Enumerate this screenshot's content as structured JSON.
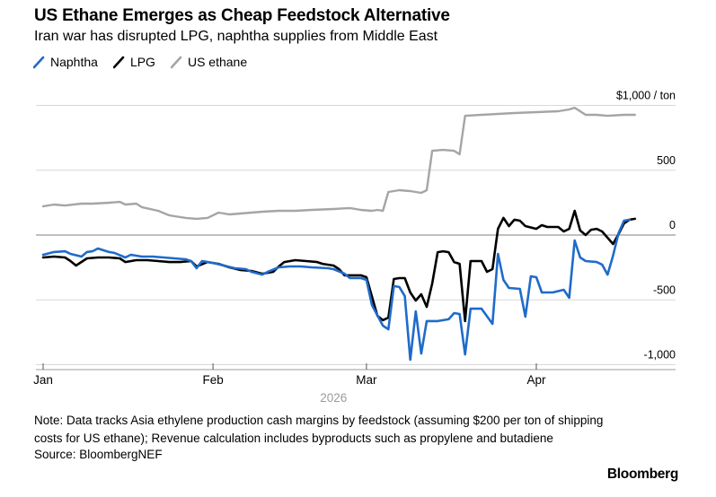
{
  "header": {
    "title": "US Ethane Emerges as Cheap Feedstock Alternative",
    "subtitle": "Iran war has disrupted LPG, naphtha supplies from Middle East"
  },
  "legend": [
    {
      "label": "Naphtha",
      "color": "#1f6bc9"
    },
    {
      "label": "LPG",
      "color": "#000000"
    },
    {
      "label": "US ethane",
      "color": "#a5a5a5"
    }
  ],
  "chart_data": {
    "type": "line",
    "title": "US Ethane Emerges as Cheap Feedstock Alternative",
    "subtitle": "Iran war has disrupted LPG, naphtha supplies from Middle East",
    "ylabel": "$ / ton",
    "x_unit": "days since Jan 1, 2026",
    "ylim": [
      -1100,
      1100
    ],
    "grid": true,
    "legend_position": "top-left",
    "y_gridlines": [
      {
        "value": 1000,
        "label": "$1,000 / ton"
      },
      {
        "value": 500,
        "label": "500"
      },
      {
        "value": 0,
        "label": "0"
      },
      {
        "value": -500,
        "label": "-500"
      },
      {
        "value": -1000,
        "label": "-1,000"
      }
    ],
    "x_ticks": [
      {
        "day": 0,
        "label": "Jan"
      },
      {
        "day": 31,
        "label": "Feb"
      },
      {
        "day": 59,
        "label": "Mar"
      },
      {
        "day": 90,
        "label": "Apr"
      }
    ],
    "year_label": {
      "day": 53,
      "label": "2026"
    },
    "colors": {
      "naphtha": "#1f6bc9",
      "lpg": "#000000",
      "us_ethane": "#a5a5a5",
      "gridline": "#d8d8d8",
      "zero_line": "#7f7f7f",
      "axis_line": "#b0b0b0",
      "year_text": "#9b9b9b"
    },
    "series": [
      {
        "name": "Naphtha",
        "color": "#1f6bc9",
        "points": [
          [
            0,
            -152
          ],
          [
            2,
            -131
          ],
          [
            4,
            -125
          ],
          [
            5,
            -145
          ],
          [
            7,
            -166
          ],
          [
            8,
            -131
          ],
          [
            9,
            -125
          ],
          [
            10,
            -104
          ],
          [
            12,
            -131
          ],
          [
            13,
            -138
          ],
          [
            15,
            -173
          ],
          [
            16,
            -152
          ],
          [
            18,
            -166
          ],
          [
            20,
            -166
          ],
          [
            22,
            -173
          ],
          [
            24,
            -180
          ],
          [
            26,
            -187
          ],
          [
            27,
            -201
          ],
          [
            28,
            -256
          ],
          [
            29,
            -201
          ],
          [
            31,
            -215
          ],
          [
            33,
            -235
          ],
          [
            35,
            -256
          ],
          [
            37,
            -263
          ],
          [
            38,
            -284
          ],
          [
            40,
            -305
          ],
          [
            41,
            -284
          ],
          [
            43,
            -249
          ],
          [
            45,
            -242
          ],
          [
            47,
            -242
          ],
          [
            49,
            -249
          ],
          [
            52,
            -256
          ],
          [
            53,
            -263
          ],
          [
            55,
            -298
          ],
          [
            56,
            -332
          ],
          [
            58,
            -332
          ],
          [
            59,
            -346
          ],
          [
            60,
            -540
          ],
          [
            62,
            -699
          ],
          [
            63,
            -727
          ],
          [
            64,
            -394
          ],
          [
            65,
            -401
          ],
          [
            66,
            -471
          ],
          [
            67,
            -962
          ],
          [
            68,
            -588
          ],
          [
            69,
            -914
          ],
          [
            70,
            -664
          ],
          [
            72,
            -664
          ],
          [
            74,
            -650
          ],
          [
            75,
            -602
          ],
          [
            76,
            -609
          ],
          [
            77,
            -921
          ],
          [
            78,
            -568
          ],
          [
            80,
            -568
          ],
          [
            82,
            -685
          ],
          [
            83,
            -145
          ],
          [
            84,
            -346
          ],
          [
            85,
            -408
          ],
          [
            87,
            -415
          ],
          [
            88,
            -630
          ],
          [
            89,
            -318
          ],
          [
            90,
            -325
          ],
          [
            91,
            -443
          ],
          [
            93,
            -443
          ],
          [
            95,
            -422
          ],
          [
            96,
            -484
          ],
          [
            97,
            -42
          ],
          [
            98,
            -173
          ],
          [
            99,
            -201
          ],
          [
            101,
            -208
          ],
          [
            102,
            -228
          ],
          [
            103,
            -305
          ],
          [
            104,
            -159
          ],
          [
            105,
            14
          ],
          [
            106,
            111
          ],
          [
            107,
            118
          ]
        ]
      },
      {
        "name": "LPG",
        "color": "#000000",
        "points": [
          [
            0,
            -173
          ],
          [
            2,
            -166
          ],
          [
            4,
            -173
          ],
          [
            5,
            -201
          ],
          [
            6,
            -235
          ],
          [
            8,
            -180
          ],
          [
            10,
            -173
          ],
          [
            12,
            -173
          ],
          [
            14,
            -180
          ],
          [
            15,
            -208
          ],
          [
            17,
            -194
          ],
          [
            19,
            -194
          ],
          [
            21,
            -201
          ],
          [
            23,
            -208
          ],
          [
            25,
            -208
          ],
          [
            27,
            -201
          ],
          [
            28,
            -242
          ],
          [
            30,
            -208
          ],
          [
            32,
            -222
          ],
          [
            34,
            -249
          ],
          [
            36,
            -270
          ],
          [
            38,
            -277
          ],
          [
            40,
            -298
          ],
          [
            42,
            -284
          ],
          [
            43,
            -242
          ],
          [
            44,
            -208
          ],
          [
            46,
            -194
          ],
          [
            48,
            -201
          ],
          [
            50,
            -208
          ],
          [
            51,
            -222
          ],
          [
            53,
            -235
          ],
          [
            54,
            -263
          ],
          [
            55,
            -311
          ],
          [
            57,
            -311
          ],
          [
            58,
            -311
          ],
          [
            59,
            -325
          ],
          [
            61,
            -623
          ],
          [
            62,
            -657
          ],
          [
            63,
            -637
          ],
          [
            64,
            -339
          ],
          [
            65,
            -332
          ],
          [
            66,
            -332
          ],
          [
            67,
            -443
          ],
          [
            68,
            -505
          ],
          [
            69,
            -457
          ],
          [
            70,
            -554
          ],
          [
            71,
            -374
          ],
          [
            72,
            -132
          ],
          [
            73,
            -125
          ],
          [
            74,
            -132
          ],
          [
            75,
            -208
          ],
          [
            76,
            -222
          ],
          [
            77,
            -664
          ],
          [
            78,
            -201
          ],
          [
            80,
            -201
          ],
          [
            81,
            -284
          ],
          [
            82,
            -263
          ],
          [
            83,
            48
          ],
          [
            84,
            132
          ],
          [
            85,
            69
          ],
          [
            86,
            118
          ],
          [
            87,
            111
          ],
          [
            88,
            69
          ],
          [
            90,
            48
          ],
          [
            91,
            76
          ],
          [
            92,
            62
          ],
          [
            94,
            62
          ],
          [
            95,
            28
          ],
          [
            96,
            48
          ],
          [
            97,
            187
          ],
          [
            98,
            35
          ],
          [
            99,
            0
          ],
          [
            100,
            41
          ],
          [
            101,
            48
          ],
          [
            102,
            28
          ],
          [
            104,
            -69
          ],
          [
            105,
            7
          ],
          [
            106,
            90
          ],
          [
            107,
            118
          ],
          [
            108,
            125
          ]
        ]
      },
      {
        "name": "US ethane",
        "color": "#a5a5a5",
        "points": [
          [
            0,
            222
          ],
          [
            2,
            235
          ],
          [
            4,
            228
          ],
          [
            7,
            242
          ],
          [
            9,
            242
          ],
          [
            12,
            249
          ],
          [
            14,
            256
          ],
          [
            15,
            235
          ],
          [
            17,
            242
          ],
          [
            18,
            215
          ],
          [
            21,
            187
          ],
          [
            23,
            152
          ],
          [
            26,
            132
          ],
          [
            28,
            125
          ],
          [
            30,
            132
          ],
          [
            32,
            173
          ],
          [
            34,
            159
          ],
          [
            36,
            166
          ],
          [
            40,
            180
          ],
          [
            43,
            187
          ],
          [
            46,
            187
          ],
          [
            49,
            194
          ],
          [
            53,
            201
          ],
          [
            56,
            208
          ],
          [
            58,
            194
          ],
          [
            60,
            187
          ],
          [
            61,
            194
          ],
          [
            62,
            187
          ],
          [
            63,
            332
          ],
          [
            65,
            346
          ],
          [
            67,
            339
          ],
          [
            69,
            325
          ],
          [
            70,
            346
          ],
          [
            71,
            650
          ],
          [
            73,
            657
          ],
          [
            75,
            650
          ],
          [
            76,
            623
          ],
          [
            77,
            920
          ],
          [
            80,
            927
          ],
          [
            83,
            934
          ],
          [
            86,
            941
          ],
          [
            90,
            948
          ],
          [
            94,
            955
          ],
          [
            96,
            969
          ],
          [
            97,
            982
          ],
          [
            98,
            955
          ],
          [
            99,
            927
          ],
          [
            101,
            927
          ],
          [
            103,
            920
          ],
          [
            106,
            927
          ],
          [
            108,
            927
          ]
        ]
      }
    ]
  },
  "footer": {
    "note_lines": [
      "Note: Data tracks Asia ethylene production cash margins by feedstock (assuming $200 per ton of shipping",
      "costs for US ethane); Revenue calculation includes byproducts such as propylene and butadiene"
    ],
    "source": "Source: BloombergNEF",
    "brand": "Bloomberg"
  }
}
